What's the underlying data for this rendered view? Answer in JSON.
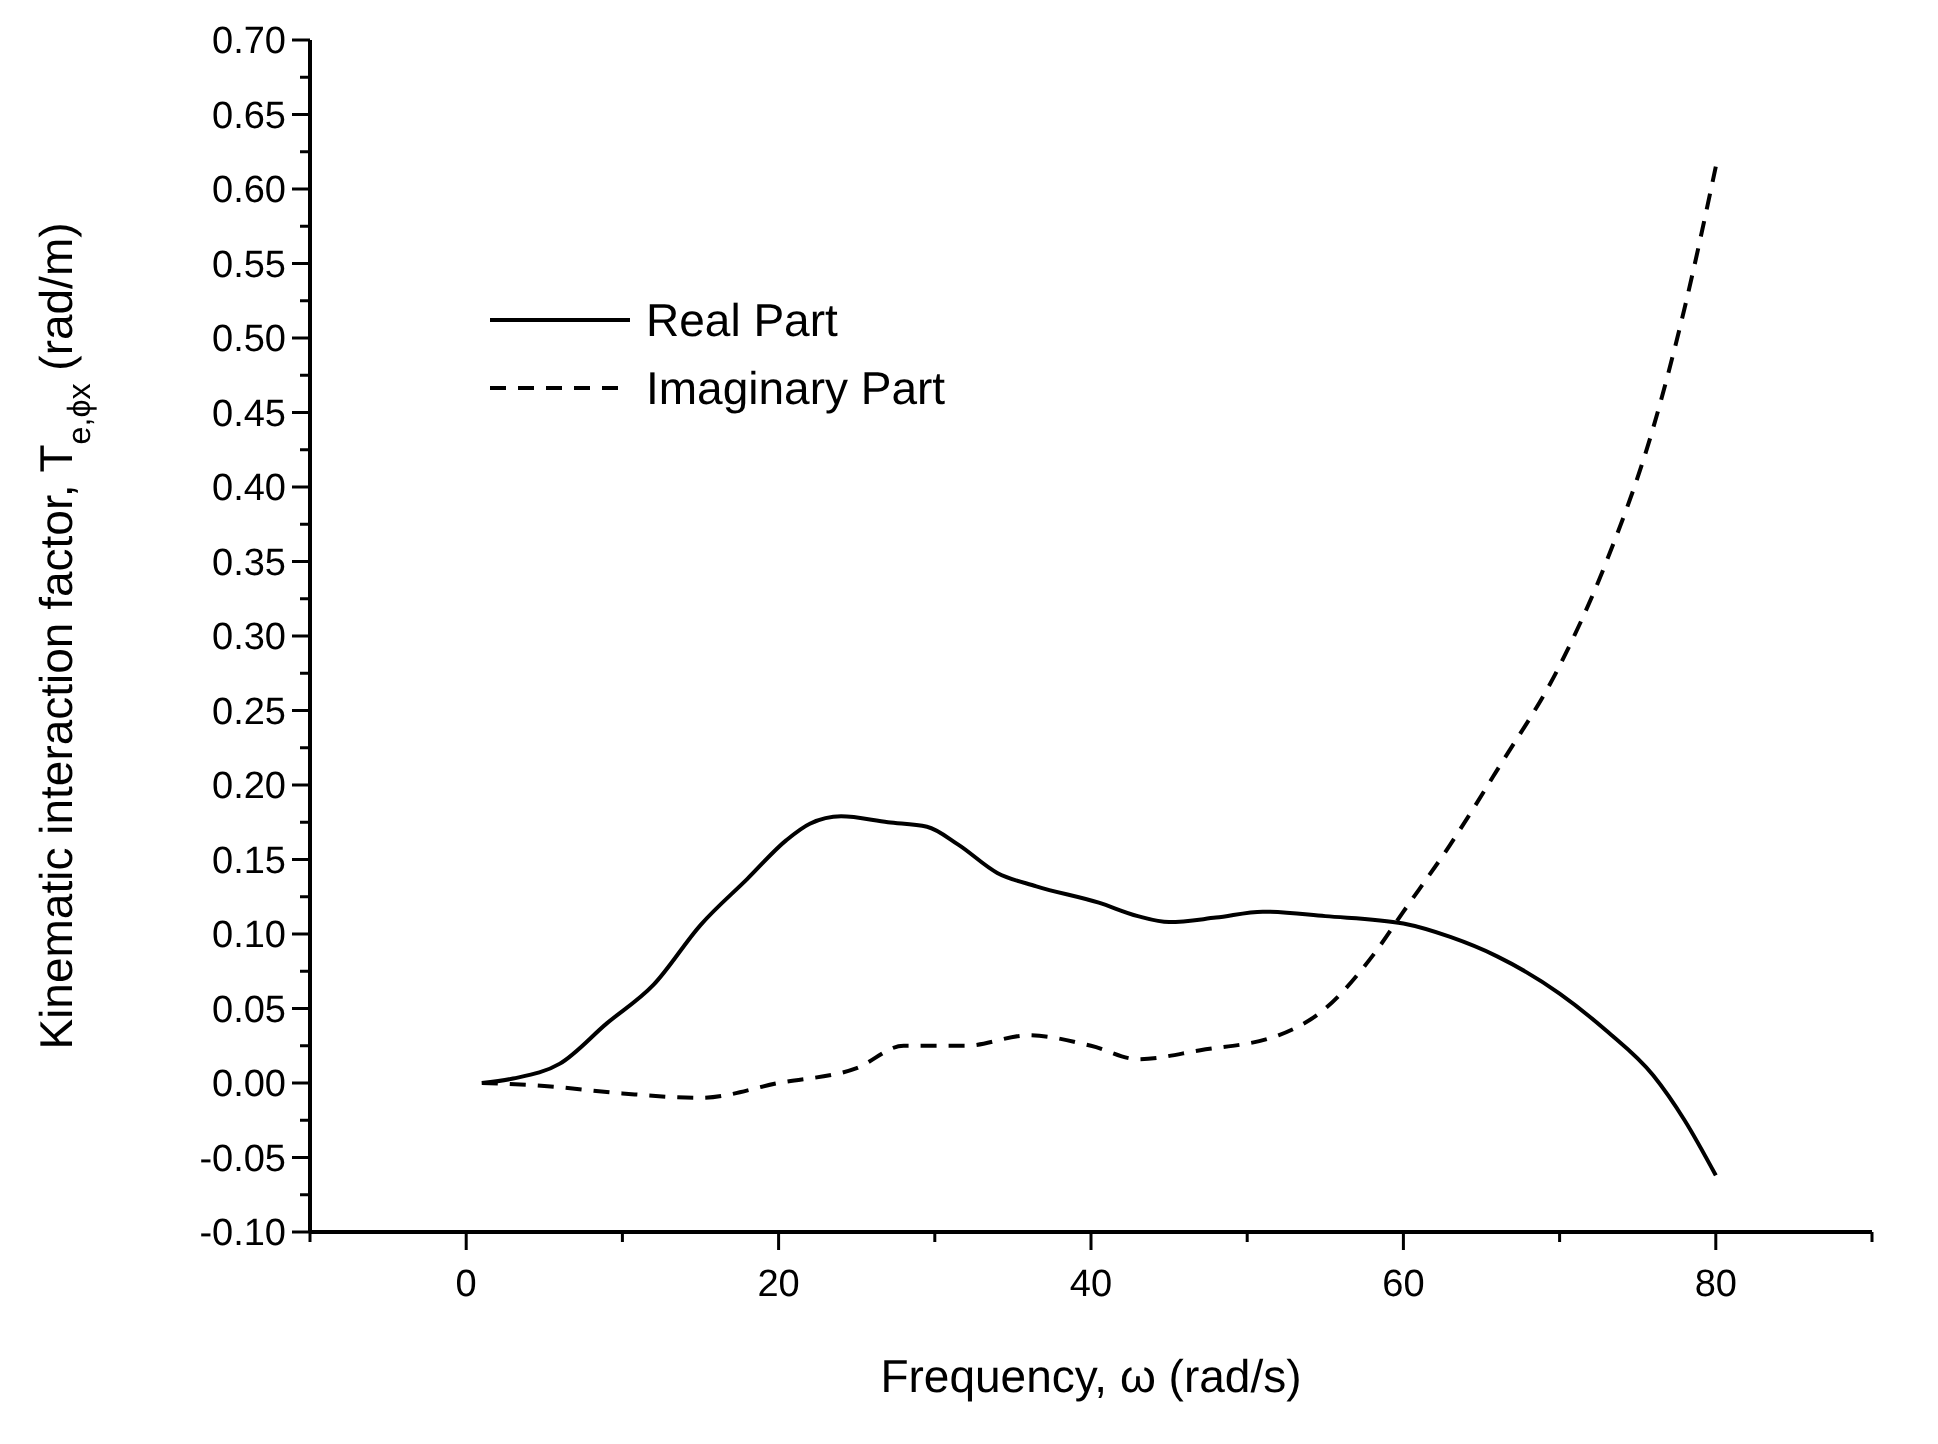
{
  "chart_data": {
    "type": "line",
    "xlabel": "Frequency, ω (rad/s)",
    "ylabel": "Kinematic interaction factor, T$_{e,ϕx}$ (rad/m)",
    "xlim": [
      -10,
      90
    ],
    "ylim": [
      -0.1,
      0.7
    ],
    "xticks": [
      {
        "value": -10,
        "label": null
      },
      0,
      {
        "value": 10,
        "label": null
      },
      20,
      {
        "value": 30,
        "label": null
      },
      40,
      {
        "value": 50,
        "label": null
      },
      60,
      {
        "value": 70,
        "label": null
      },
      80,
      {
        "value": 90,
        "label": null
      }
    ],
    "yticks": [
      {
        "value": -0.1,
        "label": "-0.10"
      },
      {
        "value": -0.075,
        "label": null
      },
      {
        "value": -0.05,
        "label": "-0.05"
      },
      {
        "value": -0.025,
        "label": null
      },
      {
        "value": 0,
        "label": "0.00"
      },
      {
        "value": 0.025,
        "label": null
      },
      {
        "value": 0.05,
        "label": "0.05"
      },
      {
        "value": 0.075,
        "label": null
      },
      {
        "value": 0.1,
        "label": "0.10"
      },
      {
        "value": 0.125,
        "label": null
      },
      {
        "value": 0.15,
        "label": "0.15"
      },
      {
        "value": 0.175,
        "label": null
      },
      {
        "value": 0.2,
        "label": "0.20"
      },
      {
        "value": 0.225,
        "label": null
      },
      {
        "value": 0.25,
        "label": "0.25"
      },
      {
        "value": 0.275,
        "label": null
      },
      {
        "value": 0.3,
        "label": "0.30"
      },
      {
        "value": 0.325,
        "label": null
      },
      {
        "value": 0.35,
        "label": "0.35"
      },
      {
        "value": 0.375,
        "label": null
      },
      {
        "value": 0.4,
        "label": "0.40"
      },
      {
        "value": 0.425,
        "label": null
      },
      {
        "value": 0.45,
        "label": "0.45"
      },
      {
        "value": 0.475,
        "label": null
      },
      {
        "value": 0.5,
        "label": "0.50"
      },
      {
        "value": 0.525,
        "label": null
      },
      {
        "value": 0.55,
        "label": "0.55"
      },
      {
        "value": 0.575,
        "label": null
      },
      {
        "value": 0.6,
        "label": "0.60"
      },
      {
        "value": 0.625,
        "label": null
      },
      {
        "value": 0.65,
        "label": "0.65"
      },
      {
        "value": 0.675,
        "label": null
      },
      {
        "value": 0.7,
        "label": "0.70"
      }
    ],
    "grid": false,
    "legend": "top left",
    "marker": "none",
    "series": [
      {
        "name": "Real Part",
        "color": "#000000",
        "line_style": "solid",
        "x": [
          1,
          3,
          6,
          9,
          12,
          15,
          18,
          20.5,
          22,
          24,
          27,
          29.5,
          31.5,
          34,
          36.5,
          40.5,
          43,
          45,
          48,
          51,
          55,
          60,
          63,
          66,
          70,
          73,
          76,
          78,
          80
        ],
        "values": [
          0,
          0.003,
          0.013,
          0.04,
          0.066,
          0.106,
          0.137,
          0.163,
          0.174,
          0.179,
          0.175,
          0.172,
          0.16,
          0.141,
          0.132,
          0.121,
          0.112,
          0.108,
          0.111,
          0.115,
          0.112,
          0.107,
          0.098,
          0.085,
          0.06,
          0.035,
          0.005,
          -0.025,
          -0.062
        ]
      },
      {
        "name": "Imaginary Part",
        "color": "#000000",
        "line_style": "dashed",
        "x": [
          1,
          5,
          10,
          15,
          20,
          25,
          28,
          32,
          36,
          40,
          43,
          47,
          52,
          55,
          58,
          60,
          63,
          66,
          70,
          73,
          76,
          78,
          80
        ],
        "values": [
          0,
          -0.002,
          -0.007,
          -0.01,
          0,
          0.01,
          0.025,
          0.025,
          0.032,
          0.025,
          0.016,
          0.022,
          0.032,
          0.05,
          0.085,
          0.115,
          0.16,
          0.21,
          0.28,
          0.35,
          0.44,
          0.52,
          0.615
        ]
      }
    ]
  }
}
